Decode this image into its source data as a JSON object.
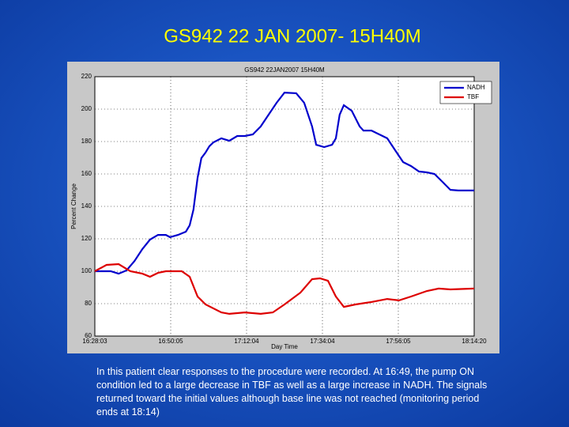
{
  "slide": {
    "title": "GS942 22 JAN 2007- 15H40M",
    "caption": "In this patient clear responses to the procedure were recorded. At 16:49, the pump ON condition led to a large decrease in TBF as well as a large increase in NADH. The signals returned toward the initial values although base line was not reached (monitoring period ends at 18:14)"
  },
  "chart_data": {
    "type": "line",
    "title": "GS942 22JAN2007 15H40M",
    "xlabel": "Day Time",
    "ylabel": "Percent Change",
    "xlim": [
      0,
      110
    ],
    "ylim": [
      60,
      220
    ],
    "xticks": [
      {
        "value": 0,
        "label": "16:28:03"
      },
      {
        "value": 22,
        "label": "16:50:05"
      },
      {
        "value": 44,
        "label": "17:12:04"
      },
      {
        "value": 66,
        "label": "17:34:04"
      },
      {
        "value": 88,
        "label": "17:56:05"
      },
      {
        "value": 110,
        "label": "18:14:20"
      }
    ],
    "yticks": [
      60,
      80,
      100,
      120,
      140,
      160,
      180,
      200,
      220
    ],
    "grid": true,
    "legend": "upper right",
    "series": [
      {
        "name": "NADH",
        "color": "#0000cc",
        "x": [
          0,
          4.6,
          6.9,
          9.2,
          11.5,
          13.8,
          16.0,
          18.3,
          20.6,
          21.8,
          24.1,
          26.4,
          27.5,
          28.6,
          29.8,
          30.9,
          32.1,
          33.2,
          34.4,
          36.7,
          39.0,
          41.3,
          43.5,
          45.8,
          48.1,
          50.4,
          52.7,
          55.0,
          58.4,
          60.7,
          63.0,
          64.2,
          66.5,
          68.8,
          69.9,
          71.0,
          72.2,
          74.5,
          76.8,
          77.9,
          80.2,
          82.5,
          84.8,
          87.1,
          89.4,
          91.7,
          94.0,
          96.3,
          98.5,
          100.8,
          103.1,
          105.4,
          110
        ],
        "values": [
          100,
          100,
          98.5,
          100.5,
          106.3,
          113.7,
          119.5,
          122.4,
          122.4,
          121.0,
          122.4,
          124.4,
          128.3,
          138.0,
          157.6,
          169.8,
          173.2,
          177.1,
          179.5,
          182.0,
          180.5,
          183.4,
          183.4,
          184.4,
          189.3,
          196.6,
          203.9,
          210.2,
          209.8,
          203.9,
          189.3,
          178.0,
          176.6,
          178.0,
          182.0,
          196.6,
          202.4,
          199.0,
          189.3,
          186.8,
          186.8,
          184.4,
          182.0,
          174.6,
          167.3,
          164.9,
          161.5,
          161.0,
          160.0,
          155.1,
          150.2,
          149.8,
          149.8
        ]
      },
      {
        "name": "TBF",
        "color": "#dd0000",
        "x": [
          0,
          3.4,
          6.9,
          10.3,
          13.8,
          16.0,
          18.3,
          20.6,
          25.2,
          27.5,
          29.8,
          32.1,
          36.7,
          39.0,
          43.5,
          48.1,
          51.6,
          55.0,
          59.6,
          63.0,
          65.3,
          67.6,
          69.9,
          72.2,
          75.6,
          80.2,
          84.8,
          88.2,
          91.7,
          96.3,
          99.7,
          103.1,
          110
        ],
        "values": [
          100,
          103.9,
          104.4,
          100,
          98.5,
          96.6,
          99.0,
          100,
          100,
          96.6,
          84.4,
          79.5,
          74.6,
          73.7,
          74.6,
          73.7,
          74.6,
          79.5,
          86.8,
          95.1,
          95.6,
          94.1,
          84.4,
          78.0,
          79.5,
          81.0,
          82.9,
          82.0,
          84.4,
          87.8,
          89.3,
          88.8,
          89.3
        ]
      }
    ]
  }
}
